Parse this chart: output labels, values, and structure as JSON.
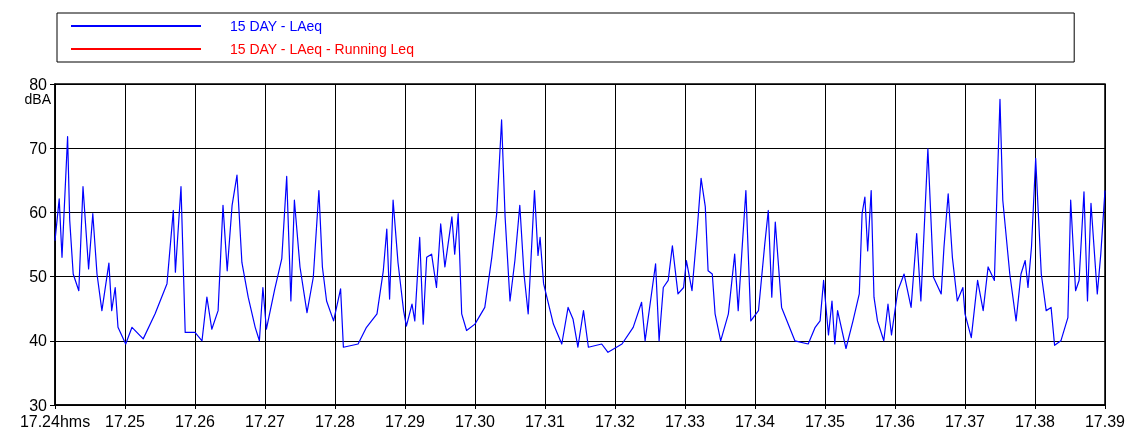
{
  "chart_data": {
    "type": "line",
    "ylabel": "dBA",
    "xlim": [
      17.24,
      17.39
    ],
    "ylim": [
      30,
      80
    ],
    "xticks": [
      {
        "value": 17.24,
        "label": "17.24hms"
      },
      17.25,
      17.26,
      17.27,
      17.28,
      17.29,
      {
        "value": 17.3,
        "label": "17.30"
      },
      17.31,
      17.32,
      17.33,
      17.34,
      17.35,
      17.36,
      17.37,
      17.38,
      17.39
    ],
    "yticks": [
      30,
      40,
      50,
      60,
      70,
      80
    ],
    "grid": true,
    "legend": "top",
    "marker": "none",
    "line_style": "solid",
    "x": [
      17.24,
      17.2406,
      17.241,
      17.2418,
      17.2421,
      17.2426,
      17.2434,
      17.244,
      17.2448,
      17.2454,
      17.246,
      17.2467,
      17.2477,
      17.2481,
      17.2486,
      17.249,
      17.2501,
      17.251,
      17.2526,
      17.2543,
      17.256,
      17.2569,
      17.2572,
      17.258,
      17.2586,
      17.26,
      17.261,
      17.2617,
      17.2624,
      17.2633,
      17.264,
      17.2646,
      17.2653,
      17.266,
      17.2667,
      17.2676,
      17.2686,
      17.2692,
      17.2697,
      17.2702,
      17.2714,
      17.2724,
      17.2731,
      17.2737,
      17.2742,
      17.275,
      17.276,
      17.2769,
      17.2777,
      17.2782,
      17.2788,
      17.2798,
      17.2808,
      17.2812,
      17.2833,
      17.2845,
      17.286,
      17.2869,
      17.2874,
      17.2878,
      17.2883,
      17.289,
      17.2898,
      17.2902,
      17.291,
      17.2914,
      17.2921,
      17.2926,
      17.2931,
      17.2938,
      17.2945,
      17.2951,
      17.2957,
      17.2967,
      17.2971,
      17.2976,
      17.2981,
      17.2988,
      17.29999,
      17.3014,
      17.3024,
      17.3031,
      17.3038,
      17.3043,
      17.305,
      17.3057,
      17.3064,
      17.307,
      17.3076,
      17.3085,
      17.309,
      17.3093,
      17.3098,
      17.3112,
      17.3124,
      17.3133,
      17.314,
      17.3147,
      17.3155,
      17.3162,
      17.3181,
      17.319,
      17.321,
      17.3226,
      17.3238,
      17.3243,
      17.3258,
      17.3263,
      17.3269,
      17.3276,
      17.3282,
      17.329,
      17.3298,
      17.3302,
      17.331,
      17.3317,
      17.3323,
      17.3329,
      17.3333,
      17.3339,
      17.3343,
      17.3351,
      17.3362,
      17.3371,
      17.3376,
      17.3382,
      17.3387,
      17.3394,
      17.3405,
      17.3414,
      17.3419,
      17.3424,
      17.3429,
      17.3438,
      17.3457,
      17.3476,
      17.3486,
      17.3493,
      17.3498,
      17.3505,
      17.351,
      17.3514,
      17.3518,
      17.353,
      17.354,
      17.3549,
      17.3553,
      17.3557,
      17.3561,
      17.3566,
      17.357,
      17.3575,
      17.3584,
      17.359,
      17.3595,
      17.3604,
      17.3613,
      17.3623,
      17.3631,
      17.3637,
      17.3647,
      17.3655,
      17.3666,
      17.367,
      17.3676,
      17.3682,
      17.3689,
      17.3697,
      17.37,
      17.3709,
      17.3718,
      17.3726,
      17.3733,
      17.3742,
      17.3746,
      17.375,
      17.3754,
      17.3764,
      17.3773,
      17.378,
      17.3786,
      17.379,
      17.3795,
      17.3801,
      17.3809,
      17.3816,
      17.3823,
      17.3828,
      17.3837,
      17.3847,
      17.3851,
      17.3858,
      17.3863,
      17.387,
      17.3875,
      17.388,
      17.3889,
      17.3894,
      17.39
    ],
    "series": [
      {
        "name": "15 DAY - LAeq",
        "color": "#0000ff",
        "values": [
          55.6,
          62.1,
          53,
          71.8,
          58.8,
          50.4,
          47.8,
          64,
          51.2,
          59.8,
          50.4,
          44.7,
          52.1,
          44.7,
          48.3,
          42.1,
          39.5,
          42.1,
          40.3,
          44.2,
          48.9,
          60.3,
          50.7,
          64,
          41.3,
          41.3,
          40,
          46.8,
          41.8,
          44.7,
          61.1,
          50.9,
          61.1,
          65.8,
          52.2,
          46.8,
          42.1,
          40,
          48.3,
          41.8,
          48.1,
          52.8,
          65.6,
          46.2,
          61.9,
          51.5,
          44.4,
          49.9,
          63.4,
          51.5,
          46.2,
          43.1,
          48.1,
          39,
          39.5,
          42.1,
          44.2,
          50.9,
          57.4,
          46.5,
          61.9,
          52.2,
          44.7,
          42.3,
          45.7,
          43.1,
          56.1,
          42.6,
          53,
          53.5,
          48.3,
          58.2,
          51.5,
          59.3,
          53.5,
          59.8,
          44.2,
          41.6,
          42.6,
          45.2,
          53,
          59.8,
          74.4,
          59.3,
          46.2,
          52.5,
          61.1,
          50.4,
          44.2,
          63.4,
          53.3,
          56.1,
          48.9,
          42.6,
          39.5,
          45.2,
          43.4,
          39,
          44.7,
          39,
          39.5,
          38.2,
          39.5,
          42.1,
          46,
          40,
          52,
          40,
          48.3,
          49.4,
          54.8,
          47.3,
          48.3,
          52.5,
          47.8,
          56.7,
          65.3,
          60.9,
          50.9,
          50.4,
          44.2,
          40,
          44.2,
          53.5,
          44.7,
          55.1,
          63.4,
          43.1,
          44.7,
          55.1,
          60.3,
          46.8,
          58.5,
          45.2,
          40,
          39.5,
          42.1,
          43.1,
          49.4,
          40.9,
          46.2,
          39.5,
          44.7,
          38.8,
          43.1,
          47.3,
          59.8,
          62.4,
          54,
          63.4,
          46.8,
          43.1,
          40,
          45.7,
          40.9,
          47.8,
          50.4,
          45.2,
          56.7,
          46.2,
          69.9,
          49.9,
          47.3,
          54.6,
          62.9,
          53,
          46.2,
          48.3,
          44.2,
          40.5,
          49.4,
          44.7,
          51.5,
          49.4,
          64,
          77.6,
          61.9,
          50.4,
          43.1,
          50.4,
          52.5,
          48.3,
          54.6,
          68.4,
          50.4,
          44.7,
          45.2,
          39.3,
          40,
          43.6,
          61.9,
          47.8,
          49.4,
          63.2,
          46.2,
          61.4,
          47.3,
          53.5,
          63.4
        ]
      },
      {
        "name": "15 DAY - LAeq - Running Leq",
        "color": "#ff0000",
        "values": [
          null,
          null,
          null,
          null,
          null,
          null,
          null,
          null,
          null,
          null,
          null,
          null,
          null,
          null,
          null,
          null,
          null,
          null,
          null,
          null,
          null,
          null,
          null,
          null,
          null,
          null,
          null,
          null,
          null,
          null,
          null,
          null,
          null,
          null,
          null,
          null,
          null,
          null,
          null,
          null,
          null,
          null,
          null,
          null,
          null,
          null,
          null,
          null,
          null,
          null,
          null,
          null,
          null,
          null,
          null,
          null,
          null,
          null,
          null,
          null,
          null,
          null,
          null,
          null,
          null,
          null,
          null,
          null,
          null,
          null,
          null,
          null,
          null,
          null,
          null,
          null,
          null,
          null,
          null,
          null,
          null,
          null,
          null,
          null,
          null,
          null,
          null,
          null,
          null,
          null,
          null,
          null,
          null,
          null,
          null,
          null,
          null,
          null,
          null,
          null,
          null,
          null,
          null,
          null,
          null,
          null,
          null,
          null,
          null,
          null,
          null,
          null,
          null,
          null,
          null,
          null,
          null,
          null,
          null,
          null,
          null,
          null,
          null,
          null,
          null,
          null,
          null,
          null,
          null,
          null,
          null,
          null,
          null,
          null,
          null,
          null,
          null,
          null,
          null,
          null,
          null,
          null,
          null,
          null,
          null,
          null,
          null,
          null,
          null,
          null,
          null,
          null,
          null,
          null,
          null,
          null,
          null,
          null,
          null,
          null,
          null,
          null,
          null,
          null,
          null,
          null,
          null,
          null,
          null,
          null,
          null,
          null,
          null,
          null,
          null,
          null,
          null,
          null,
          null,
          null,
          null,
          null,
          null,
          null,
          null,
          null,
          null,
          null,
          null,
          null,
          null,
          null,
          null,
          null,
          null,
          null,
          null,
          null,
          null
        ]
      }
    ]
  }
}
